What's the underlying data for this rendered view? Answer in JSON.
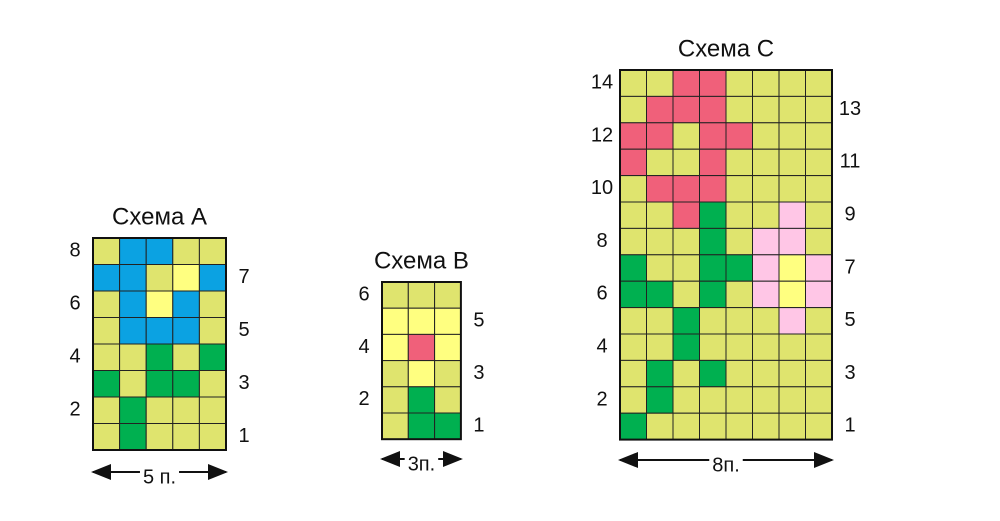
{
  "palette": {
    "y": "#dfe46e",
    "l": "#ffff80",
    "b": "#0ba2e2",
    "g": "#00b050",
    "r": "#f0607a",
    "p": "#ffc6e6"
  },
  "schemes": [
    {
      "title": "Схема А",
      "width_label": "5 п.",
      "rows": [
        "ybbyy",
        "bbylb",
        "yblby",
        "ybbby",
        "yygyg",
        "gyggy",
        "ygyyy",
        "ygyyy"
      ],
      "left_labels": [
        8,
        6,
        4,
        2
      ],
      "right_labels": [
        7,
        5,
        3,
        1
      ]
    },
    {
      "title": "Схема В",
      "width_label": "3п.",
      "rows": [
        "yyy",
        "lll",
        "lrl",
        "yly",
        "ygy",
        "ygg"
      ],
      "left_labels": [
        6,
        4,
        2
      ],
      "right_labels": [
        5,
        3,
        1
      ]
    },
    {
      "title": "Схема С",
      "width_label": "8п.",
      "rows": [
        "yyrryyyy",
        "yrrryyyy",
        "rryrryyy",
        "ryyryyyy",
        "yrrryyyy",
        "yyrgyypy",
        "yyygyppy",
        "gyyggplp",
        "ggygyplp",
        "yygyyypy",
        "yygyyyyy",
        "ygygyyyy",
        "ygyyyyyy",
        "gyyyyyyy"
      ],
      "left_labels": [
        14,
        12,
        10,
        8,
        6,
        4,
        2
      ],
      "right_labels": [
        13,
        11,
        9,
        7,
        5,
        3,
        1
      ]
    }
  ]
}
